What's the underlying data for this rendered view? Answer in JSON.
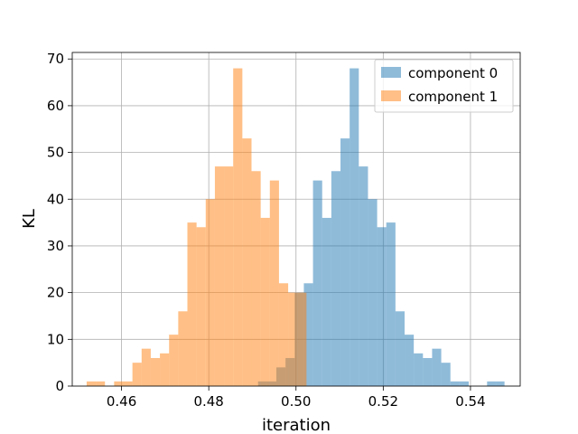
{
  "chart_data": {
    "type": "bar",
    "subtype": "histogram",
    "title": "",
    "xlabel": "iteration",
    "ylabel": "KL",
    "xlim": [
      0.4487,
      0.5514
    ],
    "ylim": [
      0,
      71.4
    ],
    "xticks": [
      0.46,
      0.48,
      0.5,
      0.52,
      0.54
    ],
    "yticks": [
      0,
      10,
      20,
      30,
      40,
      50,
      60,
      70
    ],
    "xtick_labels": [
      "0.46",
      "0.48",
      "0.50",
      "0.52",
      "0.54"
    ],
    "ytick_labels": [
      "0",
      "10",
      "20",
      "30",
      "40",
      "50",
      "60",
      "70"
    ],
    "grid": true,
    "legend": "top-right",
    "series": [
      {
        "name": "component 0",
        "color": "#1f77b4",
        "alpha": 0.5,
        "bins": [
          {
            "x0": 0.4913,
            "x1": 0.4934,
            "count": 1
          },
          {
            "x0": 0.4934,
            "x1": 0.4955,
            "count": 1
          },
          {
            "x0": 0.4955,
            "x1": 0.4976,
            "count": 4
          },
          {
            "x0": 0.4976,
            "x1": 0.4997,
            "count": 6
          },
          {
            "x0": 0.4997,
            "x1": 0.5018,
            "count": 20
          },
          {
            "x0": 0.5018,
            "x1": 0.5039,
            "count": 22
          },
          {
            "x0": 0.5039,
            "x1": 0.506,
            "count": 44
          },
          {
            "x0": 0.506,
            "x1": 0.5081,
            "count": 36
          },
          {
            "x0": 0.5081,
            "x1": 0.5102,
            "count": 46
          },
          {
            "x0": 0.5102,
            "x1": 0.5123,
            "count": 53
          },
          {
            "x0": 0.5123,
            "x1": 0.5144,
            "count": 68
          },
          {
            "x0": 0.5144,
            "x1": 0.5165,
            "count": 47
          },
          {
            "x0": 0.5165,
            "x1": 0.5186,
            "count": 40
          },
          {
            "x0": 0.5186,
            "x1": 0.5207,
            "count": 34
          },
          {
            "x0": 0.5207,
            "x1": 0.5228,
            "count": 35
          },
          {
            "x0": 0.5228,
            "x1": 0.5249,
            "count": 16
          },
          {
            "x0": 0.5249,
            "x1": 0.527,
            "count": 11
          },
          {
            "x0": 0.527,
            "x1": 0.5291,
            "count": 7
          },
          {
            "x0": 0.5291,
            "x1": 0.5312,
            "count": 6
          },
          {
            "x0": 0.5312,
            "x1": 0.5333,
            "count": 8
          },
          {
            "x0": 0.5333,
            "x1": 0.5354,
            "count": 5
          },
          {
            "x0": 0.5354,
            "x1": 0.5375,
            "count": 1
          },
          {
            "x0": 0.5375,
            "x1": 0.5396,
            "count": 1
          },
          {
            "x0": 0.5438,
            "x1": 0.5459,
            "count": 1
          },
          {
            "x0": 0.5459,
            "x1": 0.5478,
            "count": 1
          }
        ]
      },
      {
        "name": "component 1",
        "color": "#ff7f0e",
        "alpha": 0.5,
        "bins": [
          {
            "x0": 0.452,
            "x1": 0.4541,
            "count": 1
          },
          {
            "x0": 0.4541,
            "x1": 0.4562,
            "count": 1
          },
          {
            "x0": 0.4583,
            "x1": 0.4604,
            "count": 1
          },
          {
            "x0": 0.4604,
            "x1": 0.4625,
            "count": 1
          },
          {
            "x0": 0.4625,
            "x1": 0.4646,
            "count": 5
          },
          {
            "x0": 0.4646,
            "x1": 0.4667,
            "count": 8
          },
          {
            "x0": 0.4667,
            "x1": 0.4688,
            "count": 6
          },
          {
            "x0": 0.4688,
            "x1": 0.4709,
            "count": 7
          },
          {
            "x0": 0.4709,
            "x1": 0.473,
            "count": 11
          },
          {
            "x0": 0.473,
            "x1": 0.4751,
            "count": 16
          },
          {
            "x0": 0.4751,
            "x1": 0.4772,
            "count": 35
          },
          {
            "x0": 0.4772,
            "x1": 0.4793,
            "count": 34
          },
          {
            "x0": 0.4793,
            "x1": 0.4814,
            "count": 40
          },
          {
            "x0": 0.4814,
            "x1": 0.4835,
            "count": 47
          },
          {
            "x0": 0.4835,
            "x1": 0.4856,
            "count": 47
          },
          {
            "x0": 0.4856,
            "x1": 0.4877,
            "count": 68
          },
          {
            "x0": 0.4877,
            "x1": 0.4898,
            "count": 53
          },
          {
            "x0": 0.4898,
            "x1": 0.4919,
            "count": 46
          },
          {
            "x0": 0.4919,
            "x1": 0.494,
            "count": 36
          },
          {
            "x0": 0.494,
            "x1": 0.4961,
            "count": 44
          },
          {
            "x0": 0.4961,
            "x1": 0.4982,
            "count": 22
          },
          {
            "x0": 0.4982,
            "x1": 0.5003,
            "count": 20
          },
          {
            "x0": 0.5003,
            "x1": 0.5024,
            "count": 20
          }
        ]
      }
    ]
  }
}
